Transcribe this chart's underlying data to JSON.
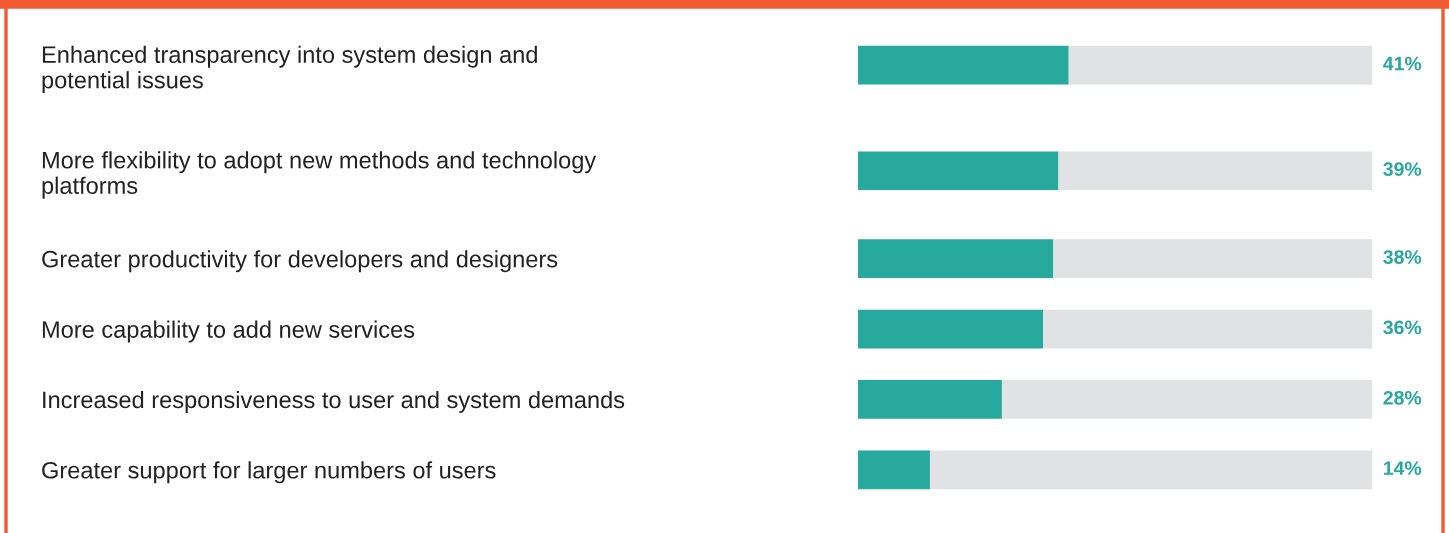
{
  "chart_data": {
    "type": "bar",
    "orientation": "horizontal",
    "stacked": true,
    "categories": [
      "Enhanced transparency into system design and\npotential issues",
      "More flexibility to adopt new methods and technology\nplatforms",
      "Greater productivity for developers and designers",
      "More capability to add new services",
      "Increased responsiveness to user and system demands",
      "Greater support for larger numbers of users"
    ],
    "series": [
      {
        "color": "#27a99d",
        "values": [
          41,
          39,
          38,
          36,
          28,
          14
        ],
        "value_labels": [
          "41%",
          "39%",
          "38%",
          "36%",
          "28%",
          "14%"
        ]
      },
      {
        "color": "#e1e2e4",
        "values": [
          59,
          61,
          62,
          64,
          72,
          86
        ]
      }
    ],
    "xlim": [
      0,
      100
    ],
    "tick_labels": "y",
    "grid": false,
    "legend": false
  }
}
